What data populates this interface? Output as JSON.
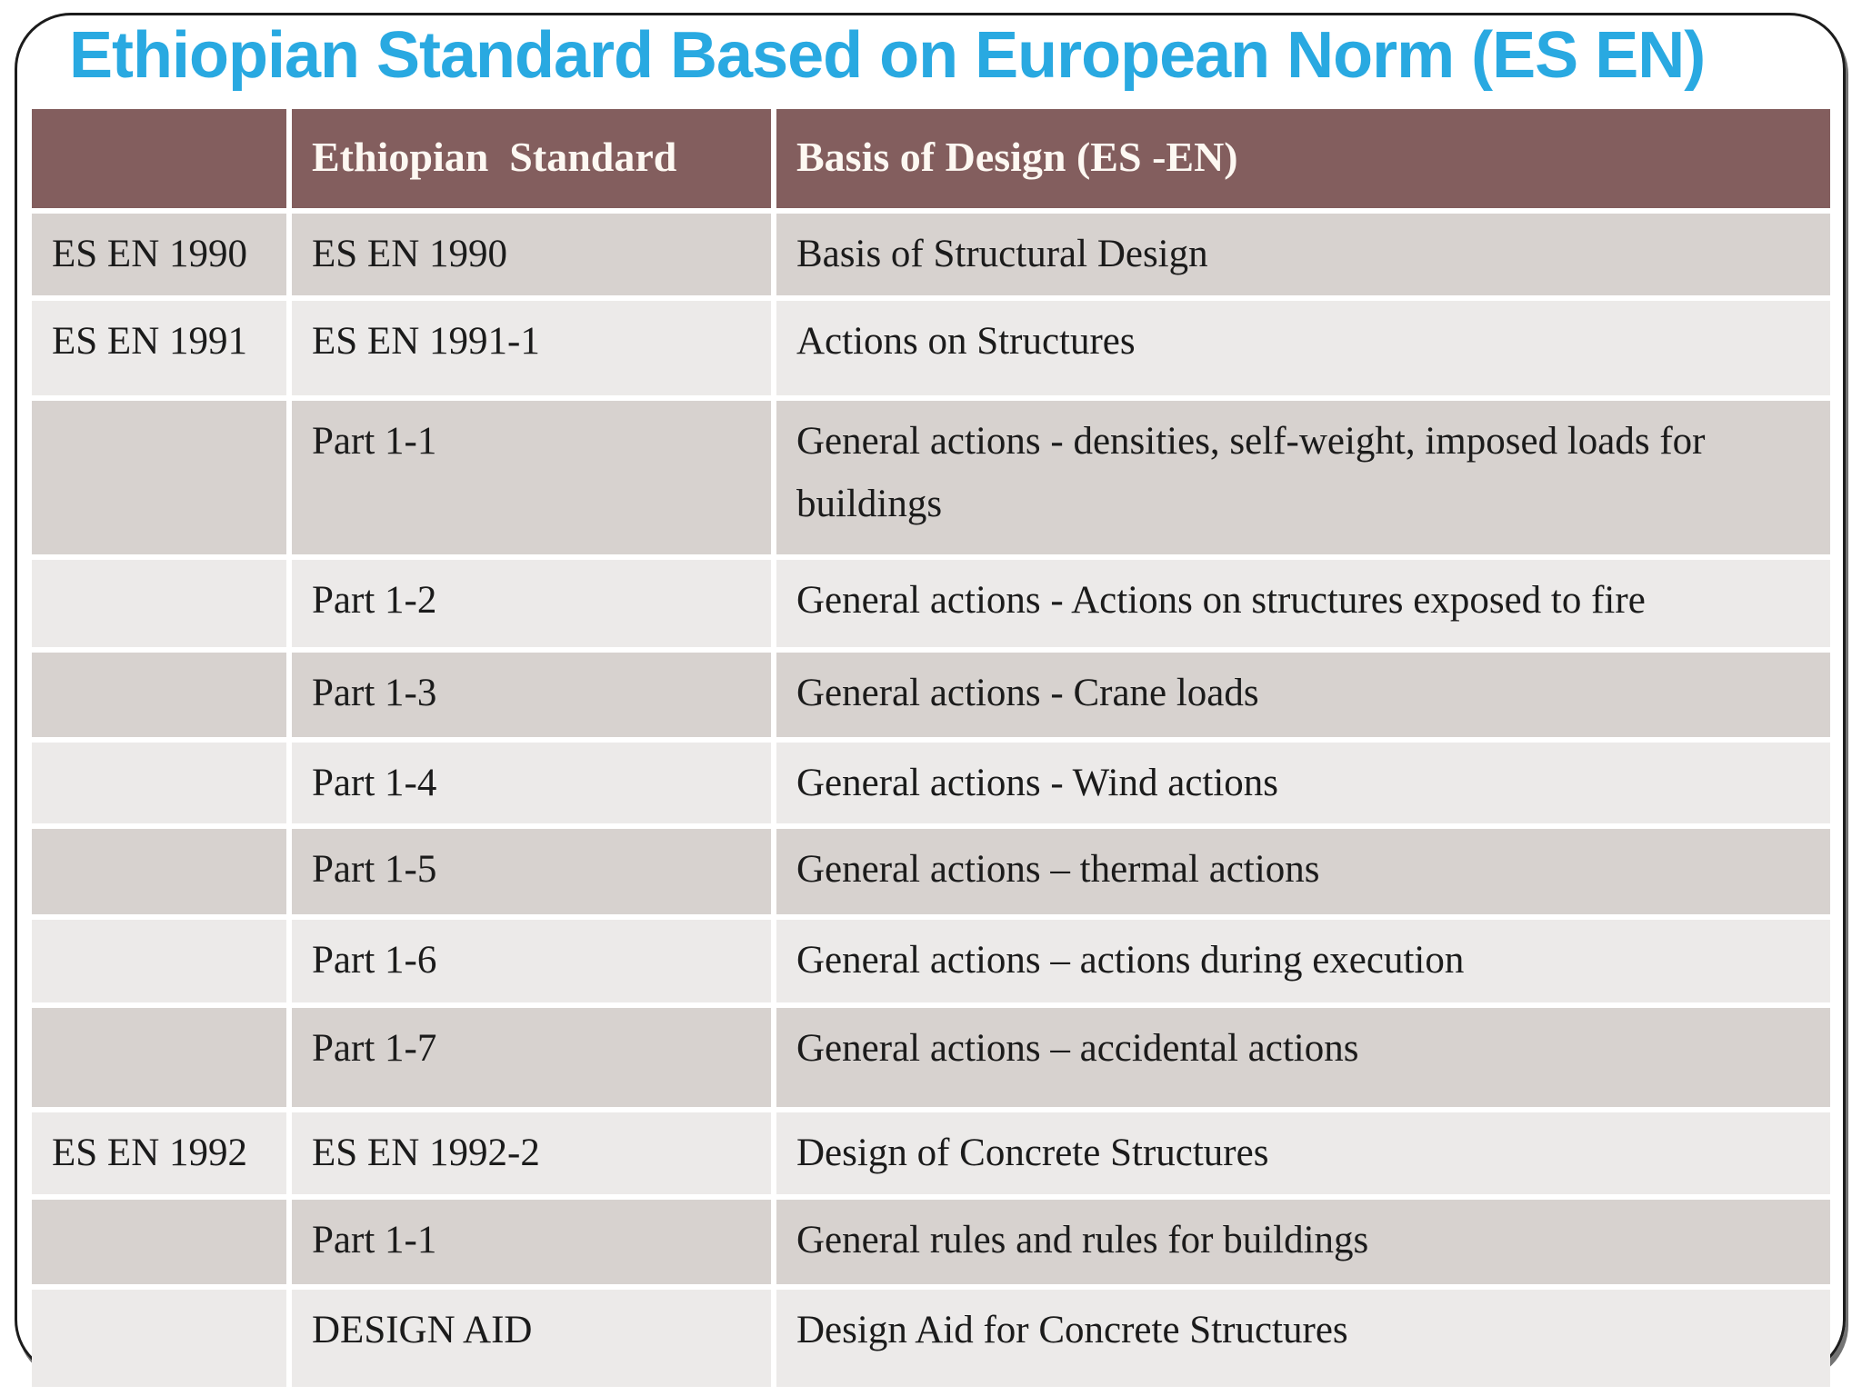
{
  "slide": {
    "title": "Ethiopian Standard Based on European Norm (ES EN)",
    "colors": {
      "title": "#29a9e1",
      "header_bg": "#835e5e",
      "row_dark": "#d7d2cf",
      "row_light": "#eceae9",
      "header_text": "#fdf8f2",
      "body_text": "#1b1b1b"
    }
  },
  "table": {
    "header": [
      "",
      "Ethiopian  Standard",
      "Basis of Design (ES -EN)"
    ],
    "rows": [
      [
        "ES EN 1990",
        "ES EN 1990",
        "Basis of Structural Design"
      ],
      [
        "ES EN 1991",
        "ES EN 1991-1",
        "Actions on Structures"
      ],
      [
        "",
        "Part 1-1",
        "General actions - densities, self-weight, imposed loads for buildings"
      ],
      [
        "",
        "Part 1-2",
        "General actions - Actions on structures exposed to fire"
      ],
      [
        "",
        "Part 1-3",
        "General actions - Crane loads"
      ],
      [
        "",
        "Part 1-4",
        "General actions - Wind actions"
      ],
      [
        "",
        "Part 1-5",
        "General actions – thermal actions"
      ],
      [
        "",
        "Part 1-6",
        "General actions – actions during execution"
      ],
      [
        "",
        "Part 1-7",
        "General actions – accidental actions"
      ],
      [
        "ES EN 1992",
        "ES EN 1992-2",
        "Design of Concrete Structures"
      ],
      [
        "",
        "Part 1-1",
        "General rules and rules for buildings"
      ],
      [
        "",
        "DESIGN AID",
        "Design Aid for Concrete Structures"
      ]
    ]
  }
}
